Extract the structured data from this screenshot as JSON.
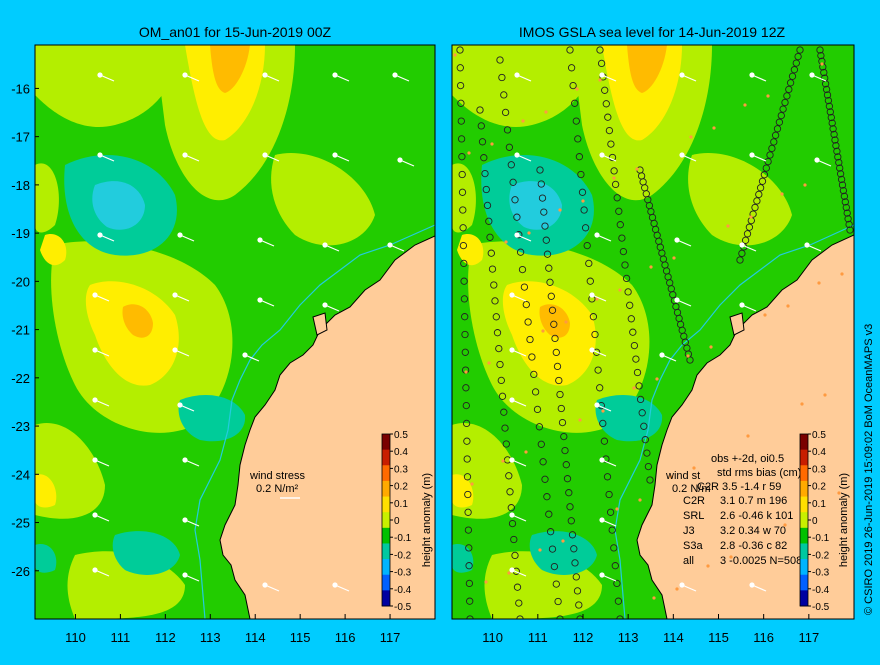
{
  "left_panel": {
    "title": "OM_an01 for 15-Jun-2019 00Z",
    "wind_label_line1": "wind stress",
    "wind_label_line2": "0.2 N/m²",
    "colorbar_label": "height anomaly (m)"
  },
  "right_panel": {
    "title": "IMOS GSLA sea level  for 14-Jun-2019 12Z",
    "wind_label_line1": "wind st",
    "wind_label_line2": "0.2 N/m",
    "colorbar_label": "height anomaly (m)",
    "stats": {
      "header1": "obs +-2d, oi0.5",
      "header2": "std rms bias (cm)",
      "rows": [
        {
          "sat": "C2R",
          "vals": "3.1  0.7  m 196"
        },
        {
          "sat": "SRL",
          "vals": "2.6  -0.46  k 101"
        },
        {
          "sat": "J3",
          "vals": "3.2  0.34  w 70"
        },
        {
          "sat": "S3a",
          "vals": "2.8  -0.36  c 82"
        },
        {
          "sat": "all",
          "vals": "3  -0.0025  N=508"
        }
      ],
      "row0_overlap": "C2R 3.5 -1.4 r 59"
    }
  },
  "axes": {
    "y_ticks": [
      "-16",
      "-17",
      "-18",
      "-19",
      "-20",
      "-21",
      "-22",
      "-23",
      "-24",
      "-25",
      "-26"
    ],
    "y_values": [
      -16,
      -17,
      -18,
      -19,
      -20,
      -21,
      -22,
      -23,
      -24,
      -25,
      -26
    ],
    "x_ticks": [
      "110",
      "111",
      "112",
      "113",
      "114",
      "115",
      "116",
      "117"
    ],
    "x_values": [
      110,
      111,
      112,
      113,
      114,
      115,
      116,
      117
    ],
    "lon_range": [
      109.1,
      118.0
    ],
    "lat_range": [
      -15.1,
      -27.0
    ]
  },
  "colorbar": {
    "ticks": [
      "0.5",
      "0.4",
      "0.3",
      "0.2",
      "0.1",
      "0",
      "-0.1",
      "-0.2",
      "-0.3",
      "-0.4",
      "-0.5"
    ],
    "colors": [
      "#7a0000",
      "#c81e00",
      "#ff6a00",
      "#ffaa00",
      "#ffe000",
      "#c8f000",
      "#00c000",
      "#00c8a0",
      "#00b4ff",
      "#0060ff",
      "#0000a0"
    ]
  },
  "colors": {
    "background": "#00ccff",
    "land": "#ffcc99",
    "green": "#22cc00",
    "yellow_green": "#b4ee00",
    "yellow": "#ffee00",
    "orange": "#ffbb00",
    "teal": "#00cc99",
    "cyan": "#22ccdd"
  },
  "credit": "© CSIRO 2019   26-Jun-2019 15:09:02 BoM OceanMAPS v3"
}
